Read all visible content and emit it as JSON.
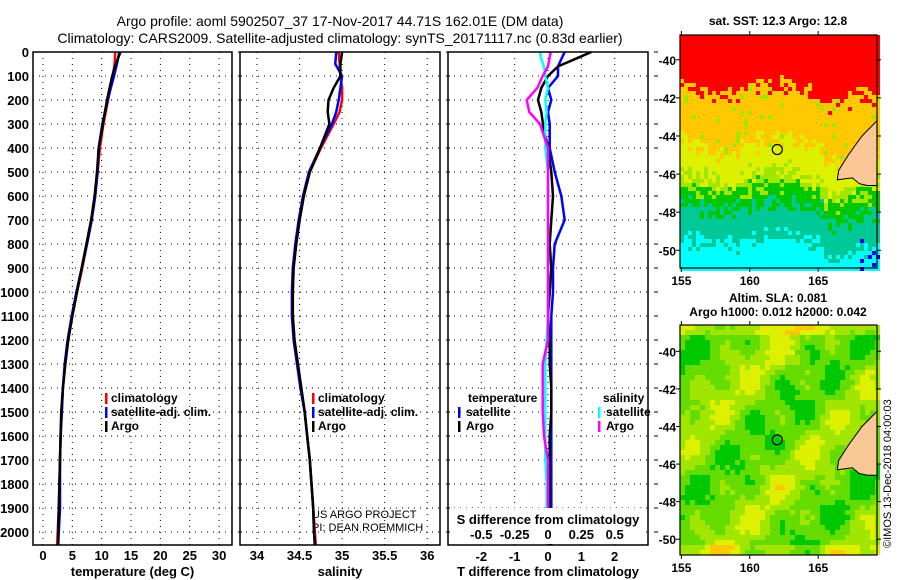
{
  "title": {
    "line1": "Argo profile: aoml 5902507_37 17-Nov-2017 44.71S 162.01E (DM data)",
    "line2": "Climatology: CARS2009. Satellite-adjusted climatology: synTS_20171117.nc (0.83d earlier)"
  },
  "credits": {
    "line1": "US ARGO PROJECT",
    "line2": "PI: DEAN ROEMMICH"
  },
  "watermark": "©IMOS 13-Dec-2018 04:00:03",
  "depth_axis": {
    "ticks": [
      "0",
      "100",
      "200",
      "300",
      "400",
      "500",
      "600",
      "700",
      "800",
      "900",
      "1000",
      "1100",
      "1200",
      "1300",
      "1400",
      "1500",
      "1600",
      "1700",
      "1800",
      "1900",
      "2000"
    ],
    "ylim": [
      0,
      2054
    ]
  },
  "chart_data": [
    {
      "type": "line",
      "name": "temperature",
      "xlabel": "temperature (deg C)",
      "xlim": [
        -1.7,
        32.2
      ],
      "xticks": [
        0,
        5,
        10,
        15,
        20,
        25,
        30
      ],
      "xticklabels": [
        "0",
        "5",
        "10",
        "15",
        "20",
        "25",
        "30"
      ],
      "depth": [
        0,
        50,
        100,
        200,
        300,
        400,
        500,
        600,
        700,
        800,
        900,
        1000,
        1100,
        1200,
        1300,
        1400,
        1500,
        1600,
        1700,
        1800,
        1900,
        2000,
        2054
      ],
      "series": [
        {
          "name": "climatology",
          "color": "#ff0000",
          "values": [
            12.3,
            12.2,
            11.9,
            11.1,
            10.3,
            9.7,
            9.3,
            8.9,
            8.3,
            7.5,
            6.7,
            5.8,
            5.0,
            4.3,
            3.8,
            3.4,
            3.2,
            3.0,
            2.9,
            2.8,
            2.7,
            2.5,
            2.4
          ]
        },
        {
          "name": "satellite-adj. clim.",
          "color": "#0000ff",
          "values": [
            13.0,
            12.6,
            12.1,
            11.0,
            10.1,
            9.5,
            9.3,
            8.9,
            8.3,
            7.5,
            6.6,
            5.7,
            4.9,
            4.2,
            3.7,
            3.4,
            3.2,
            3.0,
            2.9,
            2.9,
            2.9,
            2.7,
            2.6
          ]
        },
        {
          "name": "Argo",
          "color": "#000000",
          "values": [
            13.2,
            12.4,
            11.8,
            10.9,
            10.2,
            9.5,
            9.2,
            8.8,
            8.2,
            7.4,
            6.6,
            5.8,
            5.0,
            4.3,
            3.8,
            3.4,
            3.1,
            3.0,
            2.9,
            2.8,
            2.7,
            2.6,
            2.6
          ]
        }
      ],
      "legend": [
        "climatology",
        "satellite-adj. clim.",
        "Argo"
      ]
    },
    {
      "type": "line",
      "name": "salinity",
      "xlabel": "salinity",
      "xlim": [
        33.8,
        36.15
      ],
      "xticks": [
        34,
        34.5,
        35,
        35.5,
        36
      ],
      "xticklabels": [
        "34",
        "34.5",
        "35",
        "35.5",
        "36"
      ],
      "depth": [
        0,
        50,
        100,
        150,
        200,
        250,
        300,
        400,
        500,
        600,
        700,
        800,
        900,
        1000,
        1100,
        1200,
        1300,
        1400,
        1500,
        1600,
        1700,
        1800,
        1900,
        2000,
        2054
      ],
      "series": [
        {
          "name": "climatology",
          "color": "#ff0000",
          "values": [
            34.96,
            34.97,
            34.98,
            35.0,
            35.0,
            34.97,
            34.9,
            34.75,
            34.62,
            34.55,
            34.5,
            34.46,
            34.43,
            34.42,
            34.42,
            34.44,
            34.48,
            34.52,
            34.56,
            34.59,
            34.62,
            34.64,
            34.66,
            34.68,
            34.69
          ]
        },
        {
          "name": "satellite-adj. clim.",
          "color": "#0000ff",
          "values": [
            34.93,
            34.92,
            35.0,
            34.98,
            34.96,
            34.93,
            34.88,
            34.74,
            34.61,
            34.54,
            34.49,
            34.45,
            34.42,
            34.41,
            34.41,
            34.43,
            34.47,
            34.51,
            34.56,
            34.59,
            34.62,
            34.64,
            34.66,
            34.67,
            34.68
          ]
        },
        {
          "name": "Argo",
          "color": "#000000",
          "values": [
            35.0,
            34.98,
            34.98,
            34.9,
            34.84,
            34.83,
            34.85,
            34.74,
            34.62,
            34.55,
            34.5,
            34.46,
            34.43,
            34.42,
            34.42,
            34.44,
            34.48,
            34.52,
            34.56,
            34.59,
            34.62,
            34.64,
            34.66,
            34.67,
            34.68
          ]
        }
      ],
      "legend": [
        "climatology",
        "satellite-adj. clim.",
        "Argo"
      ]
    },
    {
      "type": "line",
      "name": "differences",
      "xlabel": "T difference from climatology",
      "x2label": "S difference from climatology",
      "xlim": [
        -3,
        3
      ],
      "xticks": [
        -2,
        -1,
        0,
        1,
        2
      ],
      "xticklabels": [
        "-2",
        "-1",
        "0",
        "1",
        "2"
      ],
      "x2lim": [
        -0.75,
        0.75
      ],
      "x2ticks": [
        -0.5,
        -0.25,
        0,
        0.25,
        0.5
      ],
      "x2ticklabels": [
        "-0.5",
        "-0.25",
        "0",
        "0.25",
        "0.5"
      ],
      "depth": [
        0,
        30,
        60,
        100,
        150,
        200,
        250,
        300,
        400,
        500,
        600,
        700,
        800,
        900,
        1000,
        1100,
        1200,
        1300,
        1400,
        1500,
        1600,
        1700,
        1800,
        1900,
        2000,
        2054
      ],
      "series": [
        {
          "name": "T satellite",
          "axis": "T",
          "color": "#0000ff",
          "values": [
            0.5,
            0.4,
            0.3,
            0.3,
            0.0,
            0.1,
            0.0,
            0.05,
            0.05,
            0.2,
            0.4,
            0.5,
            0.2,
            0.15,
            0.15,
            0.1,
            0.1,
            0.1,
            0.1,
            0.1,
            0.1,
            0.1,
            0.1,
            0.1,
            0.1,
            0.1
          ]
        },
        {
          "name": "T Argo",
          "axis": "T",
          "color": "#000000",
          "values": [
            1.3,
            0.8,
            0.3,
            0.0,
            -0.2,
            -0.3,
            -0.2,
            -0.15,
            0.0,
            0.1,
            0.15,
            0.1,
            0.05,
            0.1,
            0.05,
            0.0,
            0.05,
            0.05,
            0.1,
            0.1,
            0.05,
            0.05,
            0.05,
            0.05,
            0.05,
            0.05
          ]
        },
        {
          "name": "S satellite",
          "axis": "S",
          "color": "#00ffff",
          "values": [
            -0.06,
            -0.05,
            -0.03,
            -0.02,
            0.0,
            -0.02,
            -0.01,
            -0.02,
            -0.02,
            0.0,
            0.0,
            0.0,
            0.0,
            0.0,
            0.0,
            0.0,
            -0.01,
            -0.02,
            -0.02,
            -0.02,
            -0.02,
            -0.02,
            -0.01,
            -0.01,
            -0.01,
            -0.01
          ]
        },
        {
          "name": "S Argo",
          "axis": "S",
          "color": "#ff00ff",
          "values": [
            0.02,
            0.01,
            0.0,
            -0.04,
            -0.08,
            -0.16,
            -0.14,
            -0.06,
            0.0,
            0.0,
            0.0,
            0.0,
            0.0,
            0.0,
            0.0,
            0.0,
            0.0,
            -0.04,
            -0.04,
            -0.04,
            -0.03,
            0.0,
            0.0,
            0.0,
            0.0,
            0.0
          ]
        }
      ],
      "legend_temperature": {
        "title": "temperature",
        "items": [
          "satellite",
          "Argo"
        ],
        "colors": [
          "#0000ff",
          "#000000"
        ]
      },
      "legend_salinity": {
        "title": "salinity",
        "items": [
          "satellite",
          "Argo"
        ],
        "colors": [
          "#00ffff",
          "#ff00ff"
        ]
      }
    }
  ],
  "sst_map": {
    "title": "sat. SST: 12.3 Argo: 12.8",
    "lat_ticks": [
      "-40",
      "-42",
      "-44",
      "-46",
      "-48",
      "-50"
    ],
    "lon_ticks": [
      "155",
      "160",
      "165"
    ],
    "profile_location": {
      "lon": 162.01,
      "lat": -44.71
    },
    "palette": [
      "#ff0000",
      "#ffc800",
      "#dcf000",
      "#a0e600",
      "#00c800",
      "#00c896",
      "#00ffff",
      "#0000ff"
    ],
    "land_color": "#f9c896"
  },
  "sla_map": {
    "title1": "Altim. SLA: 0.081",
    "title2": "Argo h1000: 0.012 h2000: 0.042",
    "lat_ticks": [
      "-40",
      "-42",
      "-44",
      "-46",
      "-48",
      "-50"
    ],
    "lon_ticks": [
      "155",
      "160",
      "165"
    ],
    "profile_location": {
      "lon": 162.01,
      "lat": -44.71
    },
    "palette": [
      "#ffc800",
      "#dcf000",
      "#a0e600",
      "#64dc00",
      "#00c800"
    ],
    "land_color": "#f9c896"
  }
}
